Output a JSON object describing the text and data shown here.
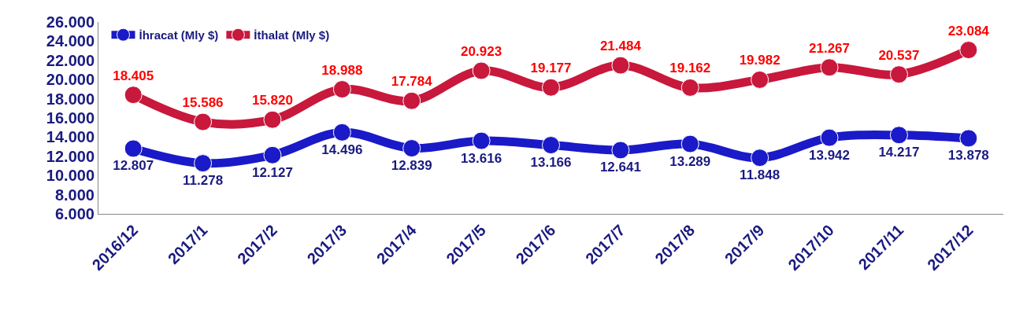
{
  "chart_data": {
    "type": "line",
    "categories": [
      "2016/12",
      "2017/1",
      "2017/2",
      "2017/3",
      "2017/4",
      "2017/5",
      "2017/6",
      "2017/7",
      "2017/8",
      "2017/9",
      "2017/10",
      "2017/11",
      "2017/12"
    ],
    "series": [
      {
        "name": "İhracat (Mly $)",
        "color": "#1a1ac8",
        "values": [
          12807,
          11278,
          12127,
          14496,
          12839,
          13616,
          13166,
          12641,
          13289,
          11848,
          13942,
          14217,
          13878
        ],
        "value_labels": [
          "12.807",
          "11.278",
          "12.127",
          "14.496",
          "12.839",
          "13.616",
          "13.166",
          "12.641",
          "13.289",
          "11.848",
          "13.942",
          "14.217",
          "13.878"
        ]
      },
      {
        "name": "İthalat (Mly $)",
        "color": "#c8183c",
        "values": [
          18405,
          15586,
          15820,
          18988,
          17784,
          20923,
          19177,
          21484,
          19162,
          19982,
          21267,
          20537,
          23084
        ],
        "value_labels": [
          "18.405",
          "15.586",
          "15.820",
          "18.988",
          "17.784",
          "20.923",
          "19.177",
          "21.484",
          "19.162",
          "19.982",
          "21.267",
          "20.537",
          "23.084"
        ]
      }
    ],
    "ylim": [
      6000,
      26000
    ],
    "yticks": [
      {
        "value": 6000,
        "label": "6.000"
      },
      {
        "value": 8000,
        "label": "8.000"
      },
      {
        "value": 10000,
        "label": "10.000"
      },
      {
        "value": 12000,
        "label": "12.000"
      },
      {
        "value": 14000,
        "label": "14.000"
      },
      {
        "value": 16000,
        "label": "16.000"
      },
      {
        "value": 18000,
        "label": "18.000"
      },
      {
        "value": 20000,
        "label": "20.000"
      },
      {
        "value": 22000,
        "label": "22.000"
      },
      {
        "value": 24000,
        "label": "24.000"
      },
      {
        "value": 26000,
        "label": "26.000"
      }
    ],
    "grid": false,
    "legend": "top left",
    "marker": "circle",
    "line_style": "solid"
  }
}
